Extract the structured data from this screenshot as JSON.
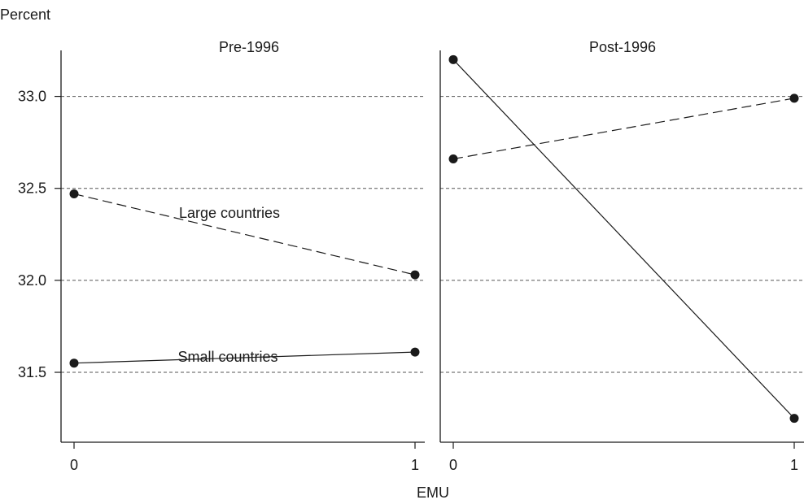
{
  "chart_data": {
    "type": "line",
    "ylabel": "Percent",
    "xlabel": "EMU",
    "ylim": [
      31.12,
      33.25
    ],
    "yticks": [
      31.5,
      32.0,
      32.5,
      33.0
    ],
    "ytick_labels": [
      "31.5",
      "32.0",
      "32.5",
      "33.0"
    ],
    "x": [
      0,
      1
    ],
    "xtick_labels": [
      "0",
      "1"
    ],
    "grid": "horizontal dashed",
    "panels": [
      {
        "title": "Pre-1996",
        "series": [
          {
            "name": "Large countries",
            "style": "dashed",
            "values": [
              32.47,
              32.03
            ]
          },
          {
            "name": "Small countries",
            "style": "solid",
            "values": [
              31.55,
              31.61
            ]
          }
        ]
      },
      {
        "title": "Post-1996",
        "series": [
          {
            "style": "dashed",
            "values": [
              32.66,
              32.99
            ]
          },
          {
            "style": "solid",
            "values": [
              33.2,
              31.25
            ]
          }
        ]
      }
    ]
  },
  "colors": {
    "ink": "#1a1a1a",
    "grid": "#555555"
  }
}
